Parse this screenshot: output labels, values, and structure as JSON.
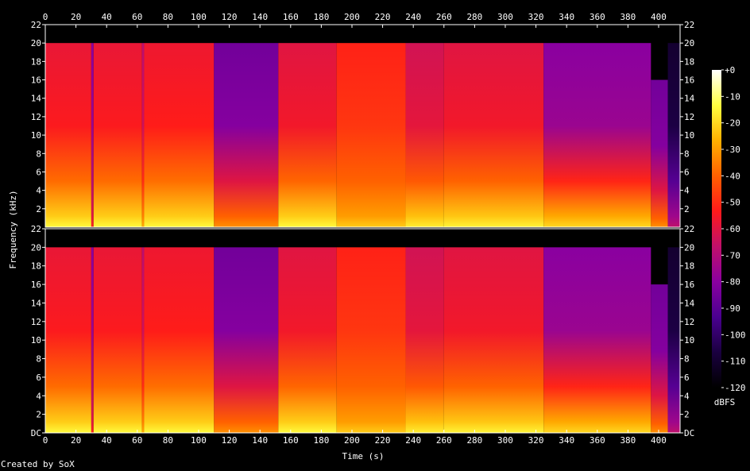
{
  "chart_data": {
    "type": "heatmap",
    "xlabel": "Time (s)",
    "ylabel": "Frequency (kHz)",
    "xlim": [
      0,
      414
    ],
    "ylim": [
      0,
      22
    ],
    "x_ticks": [
      "0",
      "20",
      "40",
      "60",
      "80",
      "100",
      "120",
      "140",
      "160",
      "180",
      "200",
      "220",
      "240",
      "260",
      "280",
      "300",
      "320",
      "340",
      "360",
      "380",
      "400"
    ],
    "y_ticks_top": [
      "2",
      "4",
      "6",
      "8",
      "10",
      "12",
      "14",
      "16",
      "18",
      "20",
      "22"
    ],
    "y_ticks_bottom": [
      "DC",
      "2",
      "4",
      "6",
      "8",
      "10",
      "12",
      "14",
      "16",
      "18",
      "20",
      "22"
    ],
    "channels": 2,
    "colorbar": {
      "label": "dBFS",
      "ticks": [
        "+0",
        "-10",
        "-20",
        "-30",
        "-40",
        "-50",
        "-60",
        "-70",
        "-80",
        "-90",
        "-100",
        "-110",
        "-120"
      ],
      "range": [
        -120,
        0
      ],
      "stops": [
        "#000000",
        "#1a0040",
        "#4a0090",
        "#8a00a0",
        "#c0106a",
        "#ff1a1a",
        "#ff6000",
        "#ffb000",
        "#ffff40",
        "#ffffff"
      ]
    },
    "segments": [
      {
        "start": 0,
        "end": 30,
        "base_db": -22,
        "top_db": -58,
        "cutoff_khz": 20
      },
      {
        "start": 30,
        "end": 31.5,
        "base_db": -60,
        "top_db": -80,
        "cutoff_khz": 20
      },
      {
        "start": 31.5,
        "end": 63,
        "base_db": -22,
        "top_db": -58,
        "cutoff_khz": 20
      },
      {
        "start": 63,
        "end": 64.5,
        "base_db": -35,
        "top_db": -68,
        "cutoff_khz": 20
      },
      {
        "start": 64.5,
        "end": 110,
        "base_db": -22,
        "top_db": -57,
        "cutoff_khz": 20
      },
      {
        "start": 110,
        "end": 152,
        "base_db": -40,
        "top_db": -85,
        "cutoff_khz": 20
      },
      {
        "start": 152,
        "end": 190,
        "base_db": -22,
        "top_db": -60,
        "cutoff_khz": 20
      },
      {
        "start": 190,
        "end": 235,
        "base_db": -30,
        "top_db": -52,
        "cutoff_khz": 20
      },
      {
        "start": 235,
        "end": 260,
        "base_db": -24,
        "top_db": -63,
        "cutoff_khz": 20
      },
      {
        "start": 260,
        "end": 325,
        "base_db": -23,
        "top_db": -60,
        "cutoff_khz": 20
      },
      {
        "start": 325,
        "end": 395,
        "base_db": -28,
        "top_db": -80,
        "cutoff_khz": 20
      },
      {
        "start": 395,
        "end": 406,
        "base_db": -40,
        "top_db": -85,
        "cutoff_khz": 16
      },
      {
        "start": 406,
        "end": 414,
        "base_db": -75,
        "top_db": -110,
        "cutoff_khz": 20
      }
    ]
  },
  "footer": {
    "credit": "Created by SoX"
  }
}
